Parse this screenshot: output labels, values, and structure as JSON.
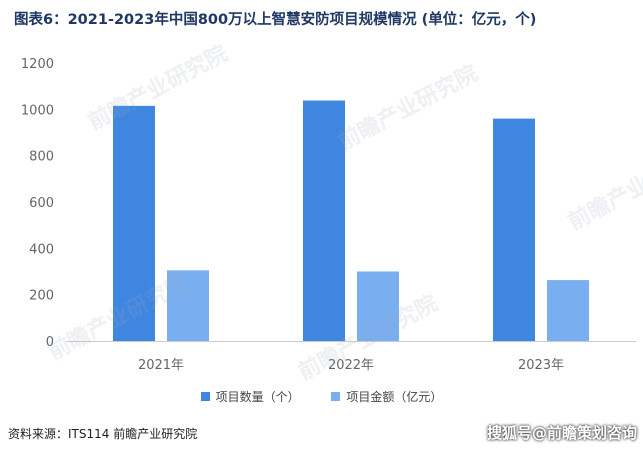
{
  "title": "图表6：2021-2023年中国800万以上智慧安防项目规模情况 (单位：亿元，个)",
  "source": "资料来源：ITS114 前瞻产业研究院",
  "brand": "搜狐号@前瞻策划咨询",
  "watermark": "前瞻产业研究院",
  "colors": {
    "series_count": "#3f86e0",
    "series_amount": "#79aef0",
    "axis": "#cccccc",
    "tick": "#666666"
  },
  "chart_data": {
    "type": "bar",
    "title": "图表6：2021-2023年中国800万以上智慧安防项目规模情况 (单位：亿元，个)",
    "categories": [
      "2021年",
      "2022年",
      "2023年"
    ],
    "series": [
      {
        "name": "项目数量（个）",
        "values": [
          1015,
          1038,
          960
        ]
      },
      {
        "name": "项目金额（亿元）",
        "values": [
          305,
          300,
          263
        ]
      }
    ],
    "ylim": [
      0,
      1200
    ],
    "yticks": [
      0,
      200,
      400,
      600,
      800,
      1000,
      1200
    ],
    "grid": false,
    "legend": "bottom"
  }
}
